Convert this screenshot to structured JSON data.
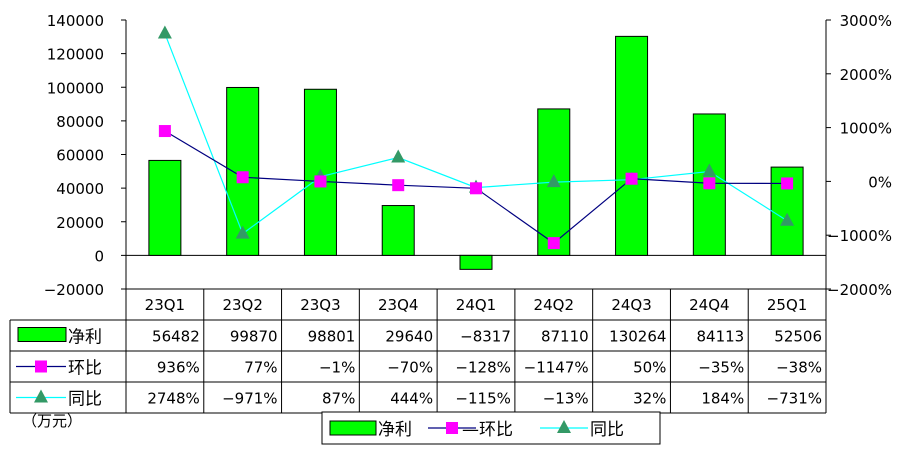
{
  "chart_data": {
    "type": "bar",
    "categories": [
      "23Q1",
      "23Q2",
      "23Q3",
      "23Q4",
      "24Q1",
      "24Q2",
      "24Q3",
      "24Q4",
      "25Q1"
    ],
    "left_axis": {
      "ylim": [
        -20000,
        140000
      ],
      "ticks": [
        -20000,
        0,
        20000,
        40000,
        60000,
        80000,
        100000,
        120000,
        140000
      ]
    },
    "right_axis": {
      "ylim": [
        -2000,
        3000
      ],
      "ticks": [
        "-2000%",
        "-1000%",
        "0%",
        "1000%",
        "2000%",
        "3000%"
      ],
      "tick_values": [
        -2000,
        -1000,
        0,
        1000,
        2000,
        3000
      ]
    },
    "unit_note": "（万元）",
    "series": [
      {
        "name": "净利",
        "kind": "bar",
        "axis": "left",
        "color": "#00ff00",
        "values": [
          56482,
          99870,
          98801,
          29640,
          -8317,
          87110,
          130264,
          84113,
          52506
        ],
        "labels": [
          "56482",
          "99870",
          "98801",
          "29640",
          "-8317",
          "87110",
          "130264",
          "84113",
          "52506"
        ]
      },
      {
        "name": "环比",
        "kind": "line",
        "axis": "right",
        "color": "#000080",
        "marker": "square",
        "marker_color": "#ff00ff",
        "values": [
          936,
          77,
          -1,
          -70,
          -128,
          -1147,
          50,
          -35,
          -38
        ],
        "labels": [
          "936%",
          "77%",
          "-1%",
          "-70%",
          "-128%",
          "-1147%",
          "50%",
          "-35%",
          "-38%"
        ]
      },
      {
        "name": "同比",
        "kind": "line",
        "axis": "right",
        "color": "#00ffff",
        "marker": "triangle",
        "marker_color": "#339966",
        "values": [
          2748,
          -971,
          87,
          444,
          -115,
          -13,
          32,
          184,
          -731
        ],
        "labels": [
          "2748%",
          "-971%",
          "87%",
          "444%",
          "-115%",
          "-13%",
          "32%",
          "184%",
          "-731%"
        ]
      }
    ],
    "legend": {
      "placement": "bottom",
      "items": [
        "净利",
        "—环比",
        "同比"
      ]
    },
    "grid": false
  }
}
